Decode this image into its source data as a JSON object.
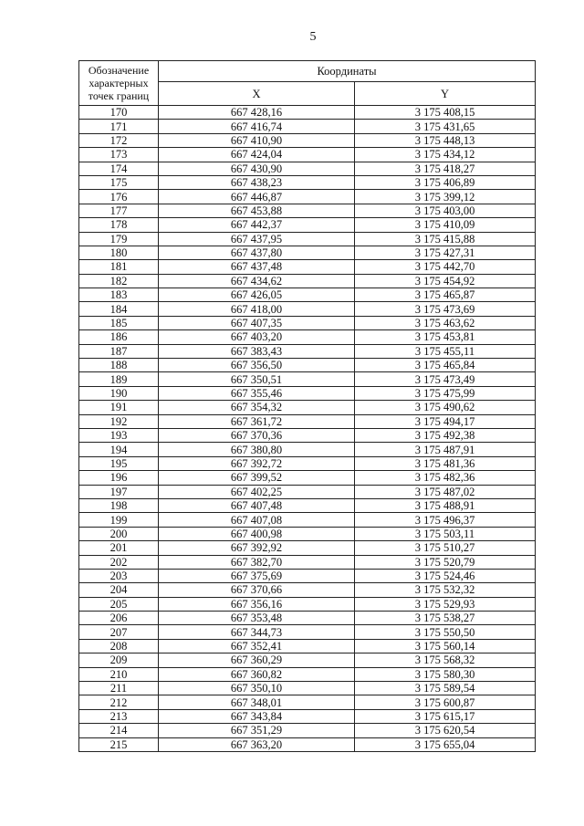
{
  "page_number": "5",
  "table": {
    "header": {
      "point_col": "Обозначение характерных точек границ",
      "coords": "Координаты",
      "x": "X",
      "y": "Y"
    },
    "rows": [
      [
        "170",
        "667 428,16",
        "3 175 408,15"
      ],
      [
        "171",
        "667 416,74",
        "3 175 431,65"
      ],
      [
        "172",
        "667 410,90",
        "3 175 448,13"
      ],
      [
        "173",
        "667 424,04",
        "3 175 434,12"
      ],
      [
        "174",
        "667 430,90",
        "3 175 418,27"
      ],
      [
        "175",
        "667 438,23",
        "3 175 406,89"
      ],
      [
        "176",
        "667 446,87",
        "3 175 399,12"
      ],
      [
        "177",
        "667 453,88",
        "3 175 403,00"
      ],
      [
        "178",
        "667 442,37",
        "3 175 410,09"
      ],
      [
        "179",
        "667 437,95",
        "3 175 415,88"
      ],
      [
        "180",
        "667 437,80",
        "3 175 427,31"
      ],
      [
        "181",
        "667 437,48",
        "3 175 442,70"
      ],
      [
        "182",
        "667 434,62",
        "3 175 454,92"
      ],
      [
        "183",
        "667 426,05",
        "3 175 465,87"
      ],
      [
        "184",
        "667 418,00",
        "3 175 473,69"
      ],
      [
        "185",
        "667 407,35",
        "3 175 463,62"
      ],
      [
        "186",
        "667 403,20",
        "3 175 453,81"
      ],
      [
        "187",
        "667 383,43",
        "3 175 455,11"
      ],
      [
        "188",
        "667 356,50",
        "3 175 465,84"
      ],
      [
        "189",
        "667 350,51",
        "3 175 473,49"
      ],
      [
        "190",
        "667 355,46",
        "3 175 475,99"
      ],
      [
        "191",
        "667 354,32",
        "3 175 490,62"
      ],
      [
        "192",
        "667 361,72",
        "3 175 494,17"
      ],
      [
        "193",
        "667 370,36",
        "3 175 492,38"
      ],
      [
        "194",
        "667 380,80",
        "3 175 487,91"
      ],
      [
        "195",
        "667 392,72",
        "3 175 481,36"
      ],
      [
        "196",
        "667 399,52",
        "3 175 482,36"
      ],
      [
        "197",
        "667 402,25",
        "3 175 487,02"
      ],
      [
        "198",
        "667 407,48",
        "3 175 488,91"
      ],
      [
        "199",
        "667 407,08",
        "3 175 496,37"
      ],
      [
        "200",
        "667 400,98",
        "3 175 503,11"
      ],
      [
        "201",
        "667 392,92",
        "3 175 510,27"
      ],
      [
        "202",
        "667 382,70",
        "3 175 520,79"
      ],
      [
        "203",
        "667 375,69",
        "3 175 524,46"
      ],
      [
        "204",
        "667 370,66",
        "3 175 532,32"
      ],
      [
        "205",
        "667 356,16",
        "3 175 529,93"
      ],
      [
        "206",
        "667 353,48",
        "3 175 538,27"
      ],
      [
        "207",
        "667 344,73",
        "3 175 550,50"
      ],
      [
        "208",
        "667 352,41",
        "3 175 560,14"
      ],
      [
        "209",
        "667 360,29",
        "3 175 568,32"
      ],
      [
        "210",
        "667 360,82",
        "3 175 580,30"
      ],
      [
        "211",
        "667 350,10",
        "3 175 589,54"
      ],
      [
        "212",
        "667 348,01",
        "3 175 600,87"
      ],
      [
        "213",
        "667 343,84",
        "3 175 615,17"
      ],
      [
        "214",
        "667 351,29",
        "3 175 620,54"
      ],
      [
        "215",
        "667 363,20",
        "3 175 655,04"
      ]
    ]
  }
}
